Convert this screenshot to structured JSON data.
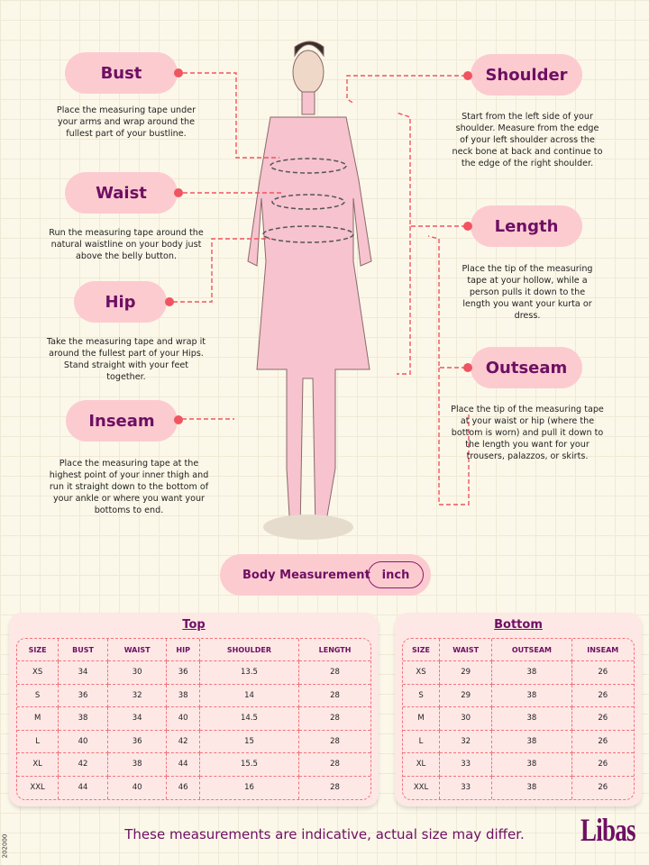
{
  "callouts": {
    "bust": {
      "label": "Bust",
      "desc": "Place the measuring tape under your arms and wrap around the fullest part of your bustline."
    },
    "waist": {
      "label": "Waist",
      "desc": "Run the measuring tape around the natural waistline on your body just above the belly button."
    },
    "hip": {
      "label": "Hip",
      "desc": "Take the measuring tape and wrap it around the fullest part of your Hips. Stand straight with your feet together."
    },
    "inseam": {
      "label": "Inseam",
      "desc": "Place the measuring tape at the highest point of your inner thigh and run it straight down to the bottom of your ankle or where you want your bottoms to end."
    },
    "shoulder": {
      "label": "Shoulder",
      "desc": "Start from the left side of your shoulder. Measure from the edge of your left shoulder across the neck bone at back and continue to the edge of the right shoulder."
    },
    "length": {
      "label": "Length",
      "desc": "Place the tip of the measuring tape at your hollow, while a person pulls it down to the length you want your kurta or dress."
    },
    "outseam": {
      "label": "Outseam",
      "desc": "Place the tip of the measuring tape at your waist or hip (where the bottom is worn) and pull it down to the length you want for your trousers, palazzos, or skirts."
    }
  },
  "body_measurement": {
    "label": "Body Measurement",
    "unit": "inch"
  },
  "top_table": {
    "title": "Top",
    "headers": [
      "SIZE",
      "BUST",
      "WAIST",
      "HIP",
      "SHOULDER",
      "LENGTH"
    ],
    "rows": [
      [
        "XS",
        "34",
        "30",
        "36",
        "13.5",
        "28"
      ],
      [
        "S",
        "36",
        "32",
        "38",
        "14",
        "28"
      ],
      [
        "M",
        "38",
        "34",
        "40",
        "14.5",
        "28"
      ],
      [
        "L",
        "40",
        "36",
        "42",
        "15",
        "28"
      ],
      [
        "XL",
        "42",
        "38",
        "44",
        "15.5",
        "28"
      ],
      [
        "XXL",
        "44",
        "40",
        "46",
        "16",
        "28"
      ]
    ]
  },
  "bottom_table": {
    "title": "Bottom",
    "headers": [
      "SIZE",
      "WAIST",
      "OUTSEAM",
      "INSEAM"
    ],
    "rows": [
      [
        "XS",
        "29",
        "38",
        "26"
      ],
      [
        "S",
        "29",
        "38",
        "26"
      ],
      [
        "M",
        "30",
        "38",
        "26"
      ],
      [
        "L",
        "32",
        "38",
        "26"
      ],
      [
        "XL",
        "33",
        "38",
        "26"
      ],
      [
        "XXL",
        "33",
        "38",
        "26"
      ]
    ]
  },
  "footer": {
    "note": "These measurements are indicative, actual size may differ.",
    "brand": "Libas",
    "code": "202000"
  },
  "colors": {
    "accent": "#6e0f63",
    "pill": "#fccbd0",
    "dash": "#f05460"
  }
}
